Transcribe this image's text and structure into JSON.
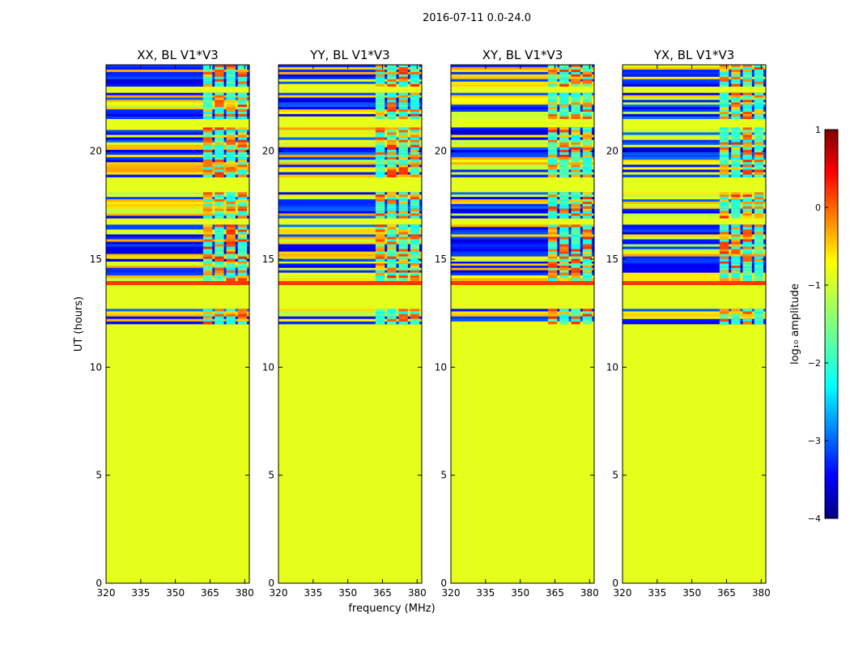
{
  "figure": {
    "suptitle": "2016-07-11 0.0-24.0",
    "xlabel": "frequency (MHz)",
    "ylabel": "UT (hours)"
  },
  "chart_data": {
    "type": "heatmap",
    "title": "2016-07-11 0.0-24.0",
    "xlabel": "frequency (MHz)",
    "ylabel": "UT (hours)",
    "xlim": [
      320,
      382
    ],
    "ylim": [
      0,
      24
    ],
    "xticks": [
      320,
      335,
      350,
      365,
      380
    ],
    "yticks": [
      0,
      5,
      10,
      15,
      20
    ],
    "panels": [
      {
        "title": "XX, BL V1*V3"
      },
      {
        "title": "YY, BL V1*V3"
      },
      {
        "title": "XY, BL V1*V3"
      },
      {
        "title": "YX, BL V1*V3"
      }
    ],
    "flagged_value": -1.0,
    "time_segments_hours": [
      {
        "start": 0.0,
        "end": 12.0,
        "state": "flagged"
      },
      {
        "start": 12.0,
        "end": 12.7,
        "state": "data"
      },
      {
        "start": 12.7,
        "end": 13.0,
        "state": "flagged"
      },
      {
        "start": 13.0,
        "end": 13.8,
        "state": "flagged"
      },
      {
        "start": 13.8,
        "end": 14.0,
        "state": "high"
      },
      {
        "start": 14.0,
        "end": 14.5,
        "state": "data"
      },
      {
        "start": 14.5,
        "end": 14.9,
        "state": "data"
      },
      {
        "start": 14.9,
        "end": 16.6,
        "state": "data"
      },
      {
        "start": 16.6,
        "end": 16.9,
        "state": "flagged"
      },
      {
        "start": 16.9,
        "end": 18.1,
        "state": "data"
      },
      {
        "start": 18.1,
        "end": 18.8,
        "state": "flagged"
      },
      {
        "start": 18.8,
        "end": 21.1,
        "state": "data"
      },
      {
        "start": 21.1,
        "end": 21.5,
        "state": "flagged"
      },
      {
        "start": 21.5,
        "end": 22.7,
        "state": "data"
      },
      {
        "start": 22.7,
        "end": 23.0,
        "state": "flagged"
      },
      {
        "start": 23.0,
        "end": 24.0,
        "state": "data"
      }
    ],
    "rfi_band_mhz": [
      362,
      380
    ],
    "colorbar": {
      "label": "log₁₀ amplitude",
      "range": [
        -4,
        1
      ],
      "ticks": [
        1,
        0,
        -1,
        -2,
        -3,
        -4
      ],
      "tick_labels": [
        "1",
        "0",
        "−1",
        "−2",
        "−3",
        "−4"
      ],
      "colormap": "jet"
    }
  }
}
